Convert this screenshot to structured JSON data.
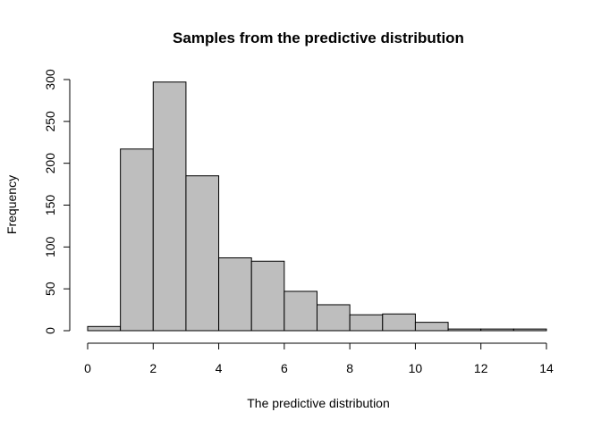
{
  "chart_data": {
    "type": "bar",
    "title": "Samples from the predictive distribution",
    "xlabel": "The predictive distribution",
    "ylabel": "Frequency",
    "bin_edges": [
      0,
      1,
      2,
      3,
      4,
      5,
      6,
      7,
      8,
      9,
      10,
      11,
      12,
      13,
      14
    ],
    "values": [
      5,
      217,
      297,
      185,
      87,
      83,
      47,
      31,
      19,
      20,
      10,
      2,
      2,
      2
    ],
    "xlim": [
      0,
      14
    ],
    "ylim": [
      0,
      300
    ],
    "xticks": [
      0,
      2,
      4,
      6,
      8,
      10,
      12,
      14
    ],
    "yticks": [
      0,
      50,
      100,
      150,
      200,
      250,
      300
    ],
    "bar_color": "#bebebe",
    "edge_color": "#000000",
    "grid": false,
    "legend": "none"
  }
}
